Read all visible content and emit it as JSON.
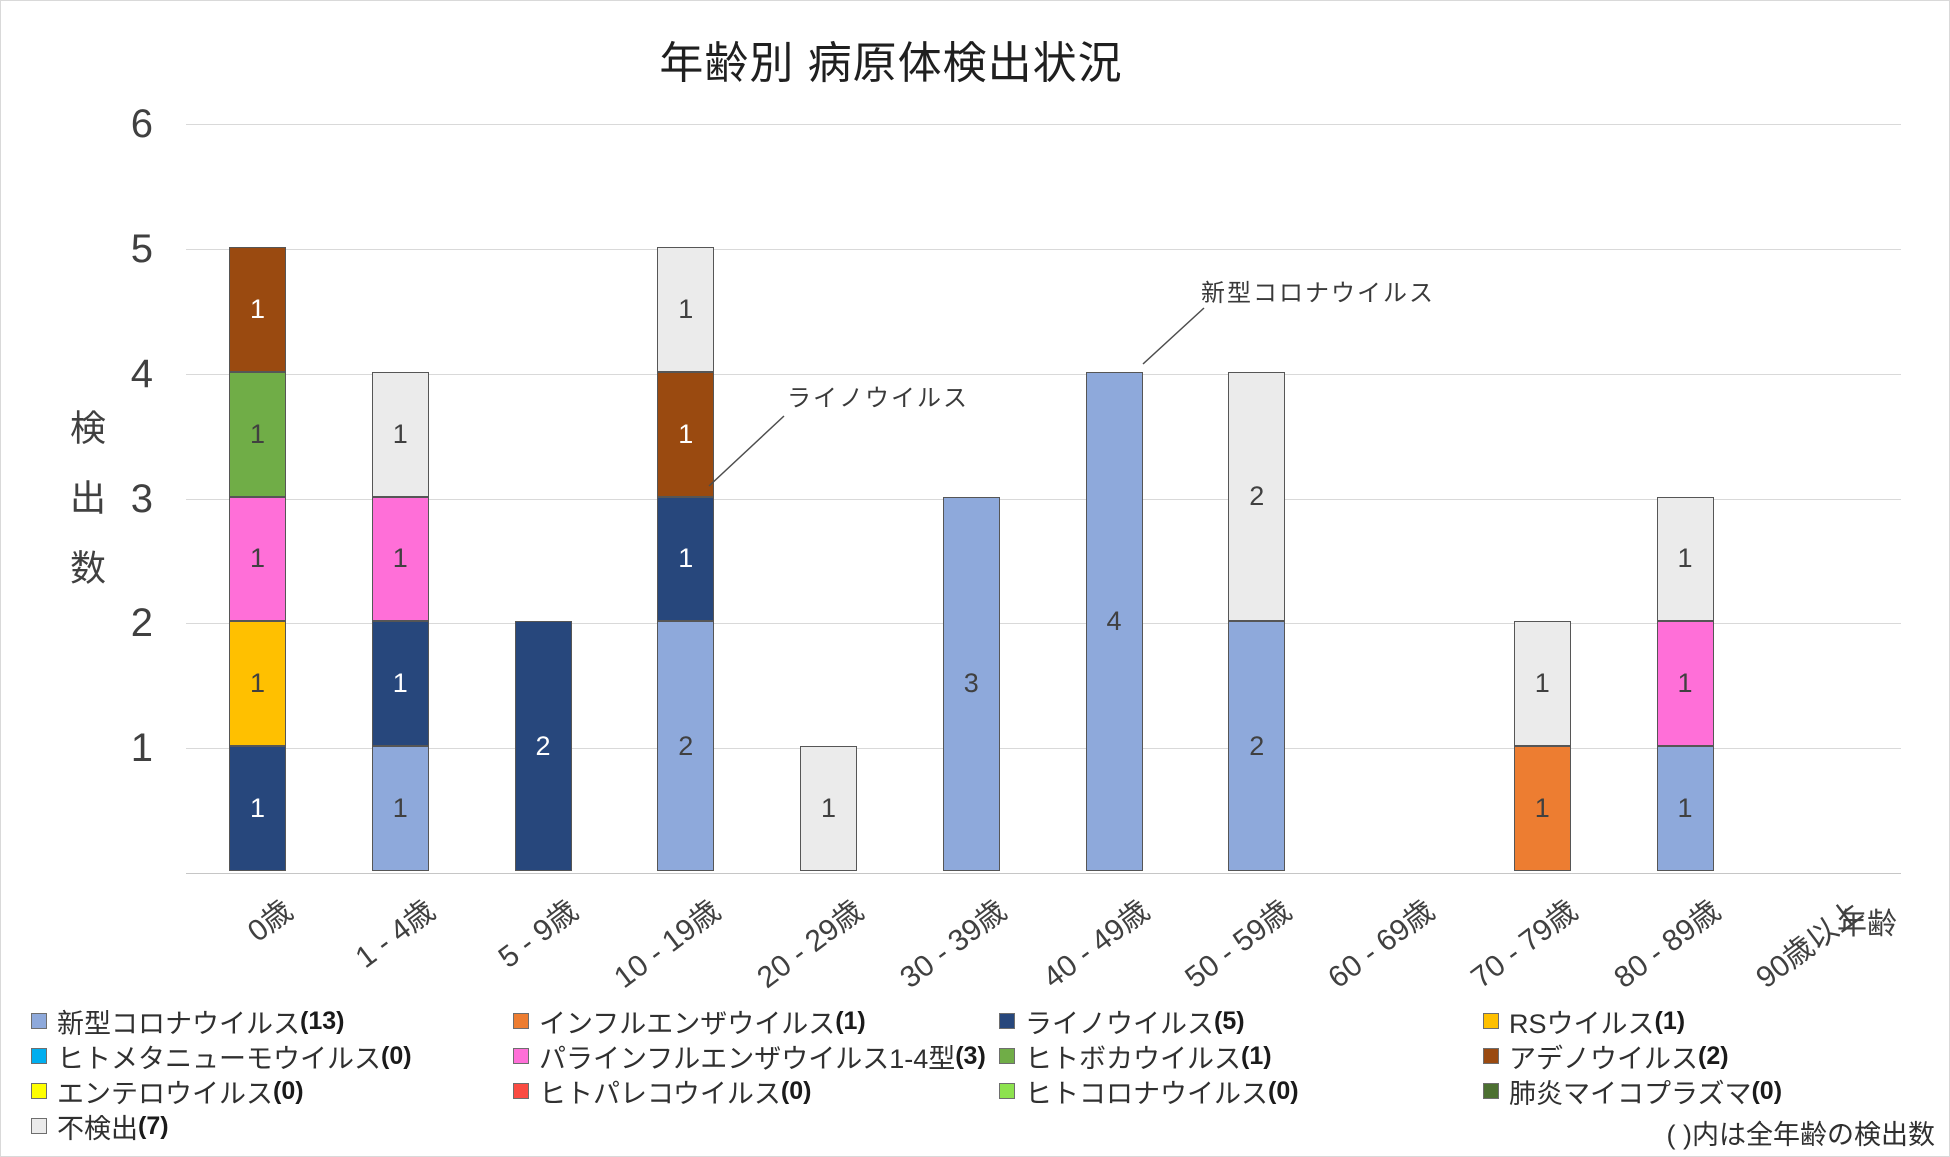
{
  "title": "年齢別 病原体検出状況",
  "y_axis": {
    "title": "検出数",
    "ticks": [
      6,
      5,
      4,
      3,
      2,
      1
    ],
    "range": [
      0,
      6
    ]
  },
  "x_axis": {
    "title": "年齢"
  },
  "annotations": {
    "covid": {
      "text": "新型コロナウイルス"
    },
    "rhino": {
      "text": "ライノウイルス"
    }
  },
  "note": "( )内は全年齢の検出数",
  "colors": {
    "gridline": "#D9D9D9",
    "axis_line": "#C6C6C6",
    "segment_border": "#565656",
    "annotation_line": "#4D4D4D",
    "text_dark": "#404040",
    "text_light": "#FFFFFF"
  },
  "chart_data": {
    "type": "bar",
    "subtype": "stacked-vertical",
    "title": "年齢別 病原体検出状況",
    "xlabel": "年齢",
    "ylabel": "検出数",
    "ylim": [
      0,
      6
    ],
    "grid": true,
    "legend_position": "bottom",
    "categories": [
      "0歳",
      "1 - 4歳",
      "5 - 9歳",
      "10 - 19歳",
      "20 - 29歳",
      "30 - 39歳",
      "40 - 49歳",
      "50 - 59歳",
      "60 - 69歳",
      "70 - 79歳",
      "80 - 89歳",
      "90歳以上"
    ],
    "series": [
      {
        "name": "新型コロナウイルス",
        "total": 13,
        "color": "#8EA9DB",
        "label_color": "#404040",
        "values": [
          0,
          1,
          0,
          2,
          0,
          3,
          4,
          2,
          0,
          0,
          1,
          0
        ]
      },
      {
        "name": "インフルエンザウイルス",
        "total": 1,
        "color": "#ED7D31",
        "label_color": "#404040",
        "values": [
          0,
          0,
          0,
          0,
          0,
          0,
          0,
          0,
          0,
          1,
          0,
          0
        ]
      },
      {
        "name": "ライノウイルス",
        "total": 5,
        "color": "#27477C",
        "label_color": "#FFFFFF",
        "values": [
          1,
          1,
          2,
          1,
          0,
          0,
          0,
          0,
          0,
          0,
          0,
          0
        ]
      },
      {
        "name": "RSウイルス",
        "total": 1,
        "color": "#FFC000",
        "label_color": "#404040",
        "values": [
          1,
          0,
          0,
          0,
          0,
          0,
          0,
          0,
          0,
          0,
          0,
          0
        ]
      },
      {
        "name": "ヒトメタニューモウイルス",
        "total": 0,
        "color": "#00AEEF",
        "label_color": "#404040",
        "values": [
          0,
          0,
          0,
          0,
          0,
          0,
          0,
          0,
          0,
          0,
          0,
          0
        ]
      },
      {
        "name": "パラインフルエンザウイルス1-4型",
        "total": 3,
        "color": "#FF6FD8",
        "label_color": "#404040",
        "values": [
          1,
          1,
          0,
          0,
          0,
          0,
          0,
          0,
          0,
          0,
          1,
          0
        ]
      },
      {
        "name": "ヒトボカウイルス",
        "total": 1,
        "color": "#70AD47",
        "label_color": "#404040",
        "values": [
          1,
          0,
          0,
          0,
          0,
          0,
          0,
          0,
          0,
          0,
          0,
          0
        ]
      },
      {
        "name": "アデノウイルス",
        "total": 2,
        "color": "#9A4A10",
        "label_color": "#FFFFFF",
        "values": [
          1,
          0,
          0,
          1,
          0,
          0,
          0,
          0,
          0,
          0,
          0,
          0
        ]
      },
      {
        "name": "エンテロウイルス",
        "total": 0,
        "color": "#FFFF00",
        "label_color": "#404040",
        "values": [
          0,
          0,
          0,
          0,
          0,
          0,
          0,
          0,
          0,
          0,
          0,
          0
        ]
      },
      {
        "name": "ヒトパレコウイルス",
        "total": 0,
        "color": "#FA4B42",
        "label_color": "#404040",
        "values": [
          0,
          0,
          0,
          0,
          0,
          0,
          0,
          0,
          0,
          0,
          0,
          0
        ]
      },
      {
        "name": "ヒトコロナウイルス",
        "total": 0,
        "color": "#8DE24E",
        "label_color": "#404040",
        "values": [
          0,
          0,
          0,
          0,
          0,
          0,
          0,
          0,
          0,
          0,
          0,
          0
        ]
      },
      {
        "name": "肺炎マイコプラズマ",
        "total": 0,
        "color": "#4C7031",
        "label_color": "#FFFFFF",
        "values": [
          0,
          0,
          0,
          0,
          0,
          0,
          0,
          0,
          0,
          0,
          0,
          0
        ]
      },
      {
        "name": "不検出",
        "total": 7,
        "color": "#EBEBEB",
        "label_color": "#404040",
        "values": [
          0,
          1,
          0,
          1,
          1,
          0,
          0,
          2,
          0,
          1,
          1,
          0
        ]
      }
    ]
  }
}
